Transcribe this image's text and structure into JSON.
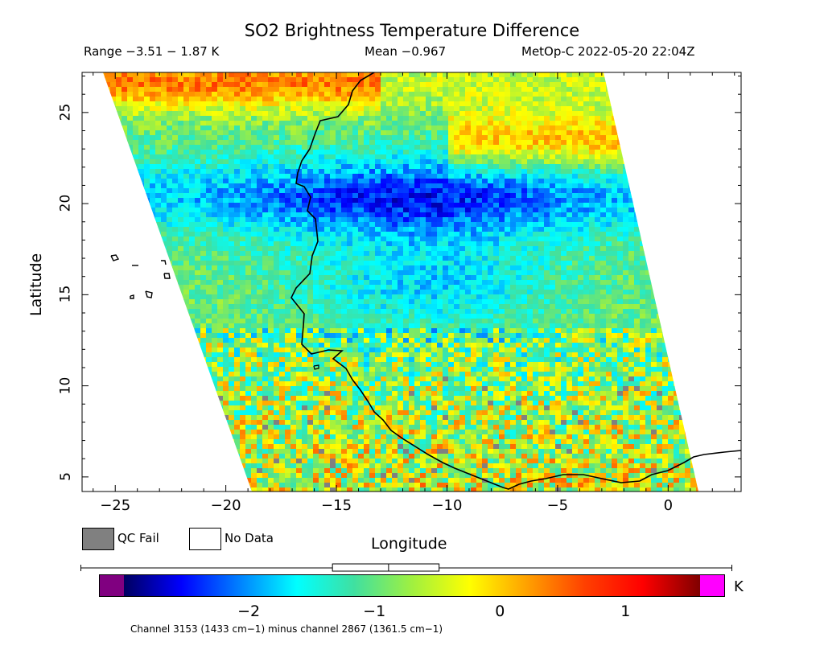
{
  "header": {
    "title": "SO2 Brightness Temperature Difference",
    "range": "Range −3.51 − 1.87 K",
    "mean": "Mean −0.967",
    "satellite_time": "MetOp-C 2022-05-20 22:04Z"
  },
  "axes": {
    "xlabel": "Longitude",
    "ylabel": "Latitude",
    "xticks": [
      {
        "value": -25,
        "label": "−25"
      },
      {
        "value": -20,
        "label": "−20"
      },
      {
        "value": -15,
        "label": "−15"
      },
      {
        "value": -10,
        "label": "−10"
      },
      {
        "value": -5,
        "label": "−5"
      },
      {
        "value": 0,
        "label": "0"
      }
    ],
    "yticks": [
      {
        "value": 5,
        "label": "5"
      },
      {
        "value": 10,
        "label": "10"
      },
      {
        "value": 15,
        "label": "15"
      },
      {
        "value": 20,
        "label": "20"
      },
      {
        "value": 25,
        "label": "25"
      }
    ],
    "xlim": [
      -26.5,
      3.3
    ],
    "ylim": [
      4.2,
      27.2
    ]
  },
  "legend": {
    "qc_fail_label": "QC Fail",
    "no_data_label": "No Data",
    "qc_fail_color": "#808080",
    "no_data_color": "#ffffff"
  },
  "colorbar": {
    "unit": "K",
    "min": -3.0,
    "max": 1.6,
    "ticks": [
      {
        "value": -2,
        "label": "−2"
      },
      {
        "value": -1,
        "label": "−1"
      },
      {
        "value": 0,
        "label": "0"
      },
      {
        "value": 1,
        "label": "1"
      }
    ],
    "under_color": "#800080",
    "over_color": "#ff00ff",
    "stops": [
      "#000060",
      "#0000ff",
      "#0080ff",
      "#00ffff",
      "#40e0a0",
      "#a0f040",
      "#ffff00",
      "#ffa000",
      "#ff4000",
      "#ff0000",
      "#800000"
    ]
  },
  "mean_boxplot": {
    "whisker_low": -3.51,
    "q1": -1.43,
    "median": -0.967,
    "q3": -0.55,
    "whisker_high": 1.87
  },
  "footnote": "Channel 3153 (1433 cm−1) minus channel 2867 (1361.5 cm−1)"
}
